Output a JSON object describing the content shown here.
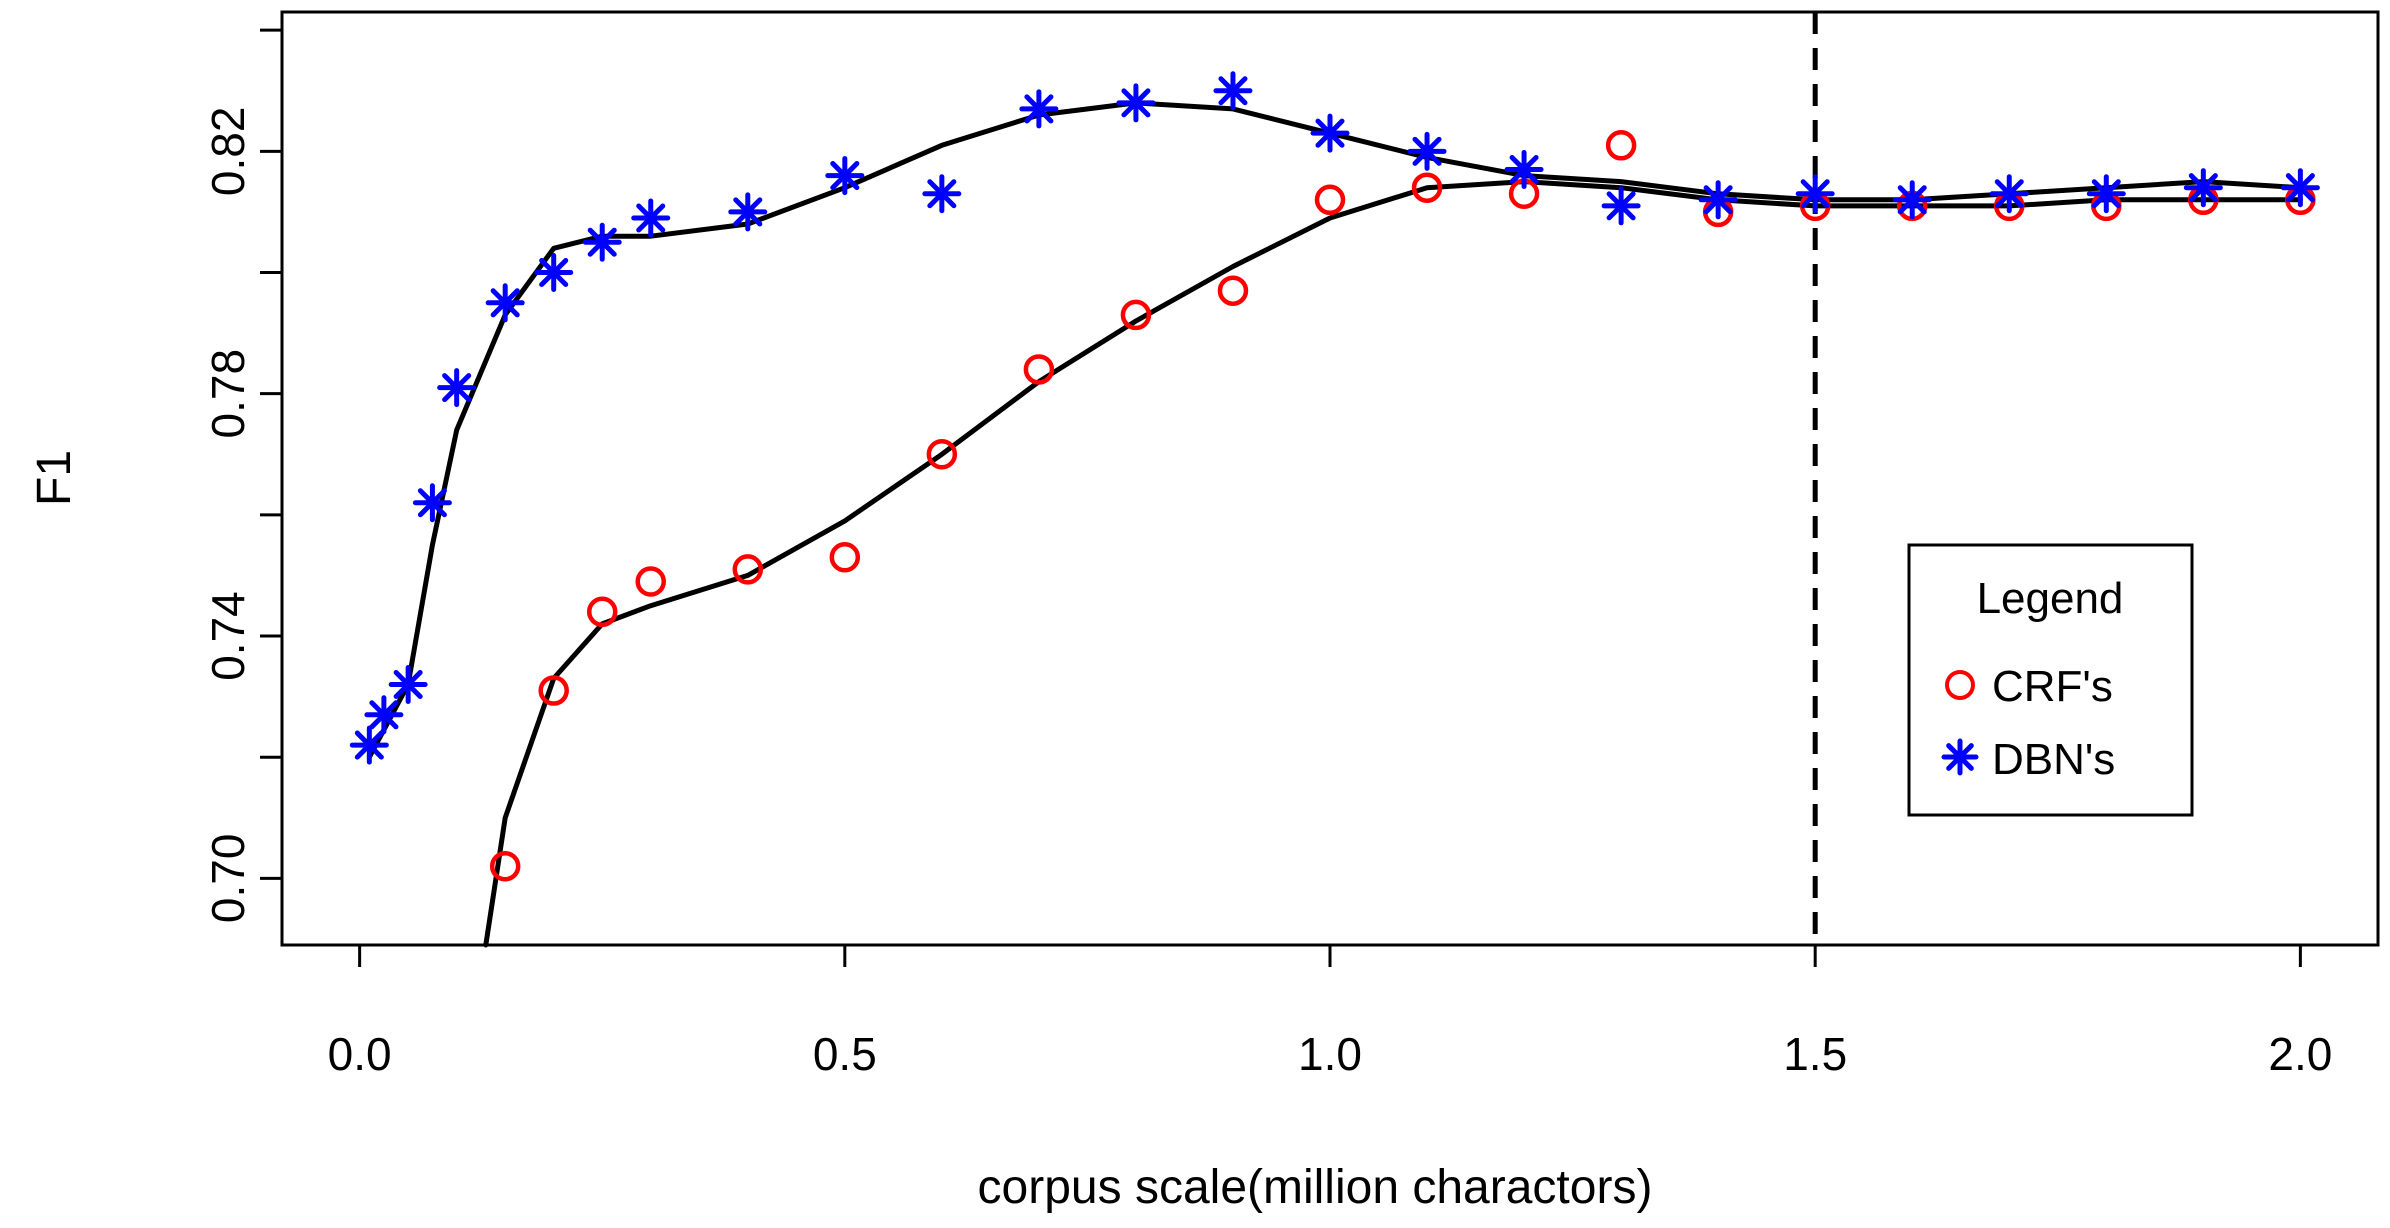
{
  "chart_data": {
    "type": "scatter",
    "title": "",
    "xlabel": "corpus scale(million charactors)",
    "ylabel": "F1",
    "xlim": [
      -0.08,
      2.08
    ],
    "ylim": [
      0.689,
      0.843
    ],
    "xticks": [
      0.0,
      0.5,
      1.0,
      1.5,
      2.0
    ],
    "xtick_labels": [
      "0.0",
      "0.5",
      "1.0",
      "1.5",
      "2.0"
    ],
    "yticks": [
      0.7,
      0.74,
      0.78,
      0.82
    ],
    "ytick_labels": [
      "0.70",
      "0.74",
      "0.78",
      "0.82"
    ],
    "y_extra_ticks": [
      0.72,
      0.76,
      0.8,
      0.84
    ],
    "vline": 1.5,
    "grid": false,
    "legend": {
      "title": "Legend",
      "position": "right",
      "entries": [
        "CRF's",
        "DBN's"
      ]
    },
    "series": [
      {
        "name": "CRF's",
        "marker": "circle",
        "color": "#ff0000",
        "x": [
          0.15,
          0.2,
          0.25,
          0.3,
          0.4,
          0.5,
          0.6,
          0.7,
          0.8,
          0.9,
          1.0,
          1.1,
          1.2,
          1.3,
          1.4,
          1.5,
          1.6,
          1.7,
          1.8,
          1.9,
          2.0
        ],
        "y": [
          0.702,
          0.731,
          0.744,
          0.749,
          0.751,
          0.753,
          0.77,
          0.784,
          0.793,
          0.797,
          0.812,
          0.814,
          0.813,
          0.821,
          0.81,
          0.811,
          0.811,
          0.811,
          0.811,
          0.812,
          0.812
        ],
        "fit_x": [
          0.13,
          0.15,
          0.2,
          0.25,
          0.3,
          0.4,
          0.5,
          0.6,
          0.7,
          0.8,
          0.9,
          1.0,
          1.1,
          1.2,
          1.3,
          1.4,
          1.5,
          1.6,
          1.7,
          1.8,
          1.9,
          2.0
        ],
        "fit_y": [
          0.689,
          0.71,
          0.733,
          0.742,
          0.745,
          0.75,
          0.759,
          0.77,
          0.782,
          0.792,
          0.801,
          0.809,
          0.814,
          0.815,
          0.814,
          0.812,
          0.811,
          0.811,
          0.811,
          0.812,
          0.812,
          0.812
        ]
      },
      {
        "name": "DBN's",
        "marker": "asterisk",
        "color": "#0000ff",
        "x": [
          0.01,
          0.025,
          0.05,
          0.075,
          0.1,
          0.15,
          0.2,
          0.25,
          0.3,
          0.4,
          0.5,
          0.6,
          0.7,
          0.8,
          0.9,
          1.0,
          1.1,
          1.2,
          1.3,
          1.4,
          1.5,
          1.6,
          1.7,
          1.8,
          1.9,
          2.0
        ],
        "y": [
          0.722,
          0.727,
          0.732,
          0.762,
          0.781,
          0.795,
          0.8,
          0.805,
          0.809,
          0.81,
          0.816,
          0.813,
          0.827,
          0.828,
          0.83,
          0.823,
          0.82,
          0.817,
          0.811,
          0.812,
          0.813,
          0.812,
          0.813,
          0.813,
          0.814,
          0.814
        ],
        "fit_x": [
          0.01,
          0.03,
          0.05,
          0.075,
          0.1,
          0.15,
          0.2,
          0.25,
          0.3,
          0.4,
          0.5,
          0.6,
          0.7,
          0.8,
          0.9,
          1.0,
          1.1,
          1.2,
          1.3,
          1.4,
          1.5,
          1.6,
          1.7,
          1.8,
          1.9,
          2.0
        ],
        "fit_y": [
          0.72,
          0.726,
          0.732,
          0.755,
          0.774,
          0.793,
          0.804,
          0.806,
          0.806,
          0.808,
          0.814,
          0.821,
          0.826,
          0.828,
          0.827,
          0.823,
          0.819,
          0.816,
          0.815,
          0.813,
          0.812,
          0.812,
          0.813,
          0.814,
          0.815,
          0.814
        ]
      }
    ]
  }
}
